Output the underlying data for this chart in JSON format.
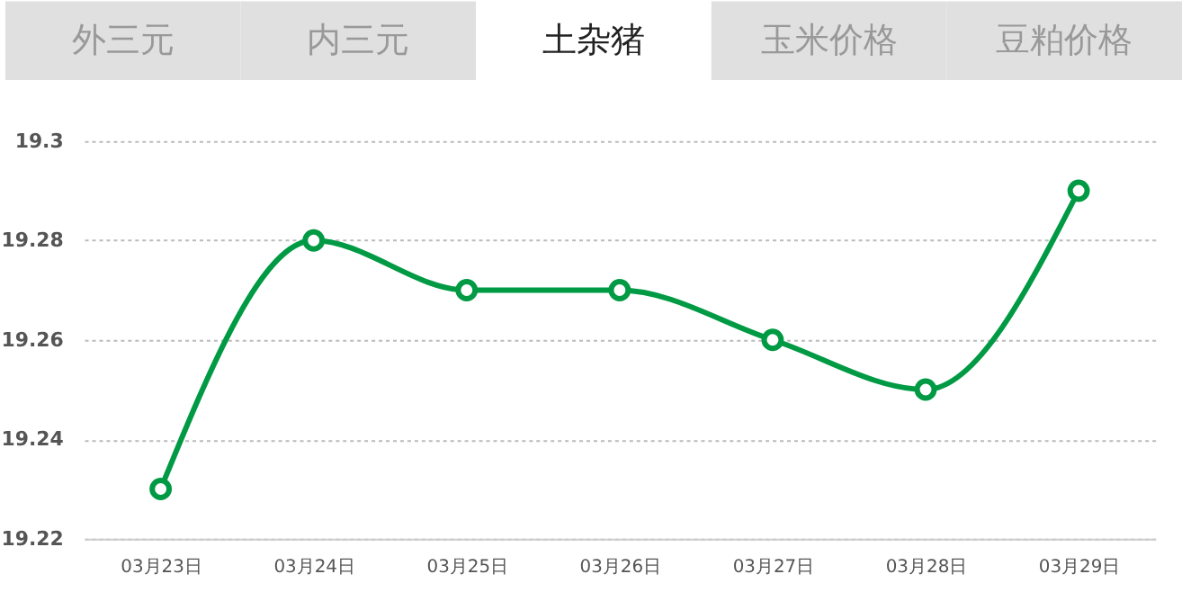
{
  "chart_data": {
    "type": "line",
    "title": "土杂猪",
    "annotations": [
      "外三元",
      "内三元",
      "玉米价格",
      "豆粕价格"
    ],
    "categories": [
      "03月23日",
      "03月24日",
      "03月25日",
      "03月26日",
      "03月27日",
      "03月28日",
      "03月29日"
    ],
    "series": [
      {
        "color": "#009a44",
        "values": [
          19.23,
          19.28,
          19.27,
          19.27,
          19.26,
          19.25,
          19.29
        ]
      }
    ],
    "ylim": [
      19.22,
      19.3
    ],
    "yticks": [
      19.22,
      19.24,
      19.26,
      19.28,
      {
        "value": 19.3,
        "label": "19.3"
      }
    ],
    "grid": "y",
    "marker": "circle",
    "line_style": "solid"
  }
}
